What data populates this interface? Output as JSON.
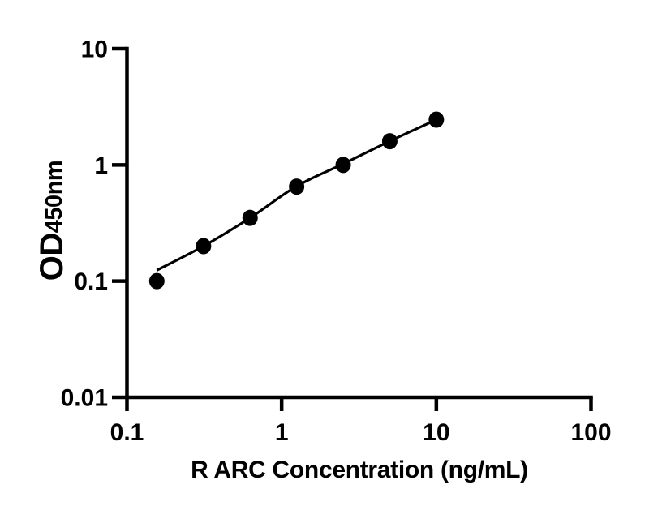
{
  "chart_data": {
    "type": "scatter",
    "title": "",
    "xlabel": "R ARC Concentration (ng/mL)",
    "ylabel_main": "OD",
    "ylabel_sub": "450nm",
    "x_scale": "log10",
    "y_scale": "log10",
    "xlim": [
      0.1,
      100
    ],
    "ylim": [
      0.01,
      10
    ],
    "x_ticks": {
      "values": [
        0.1,
        1,
        10,
        100
      ],
      "labels": [
        "0.1",
        "1",
        "10",
        "100"
      ]
    },
    "y_ticks": {
      "values": [
        0.01,
        0.1,
        1,
        10
      ],
      "labels": [
        "0.01",
        "0.1",
        "1",
        "10"
      ]
    },
    "grid": false,
    "legend": false,
    "colors": {
      "points": "#000000",
      "line": "#000000",
      "axis": "#000000",
      "text": "#000000",
      "background": "#ffffff"
    },
    "series": [
      {
        "name": "standard-data-points",
        "type": "scatter",
        "x": [
          0.156,
          0.3125,
          0.625,
          1.25,
          2.5,
          5,
          10
        ],
        "y": [
          0.1,
          0.2,
          0.35,
          0.65,
          1.0,
          1.6,
          2.45
        ]
      },
      {
        "name": "fitted-curve",
        "type": "line",
        "x": [
          0.156,
          0.3125,
          0.625,
          1.25,
          2.5,
          5,
          10
        ],
        "y": [
          0.124,
          0.2,
          0.35,
          0.655,
          1.02,
          1.6,
          2.45
        ]
      }
    ]
  }
}
